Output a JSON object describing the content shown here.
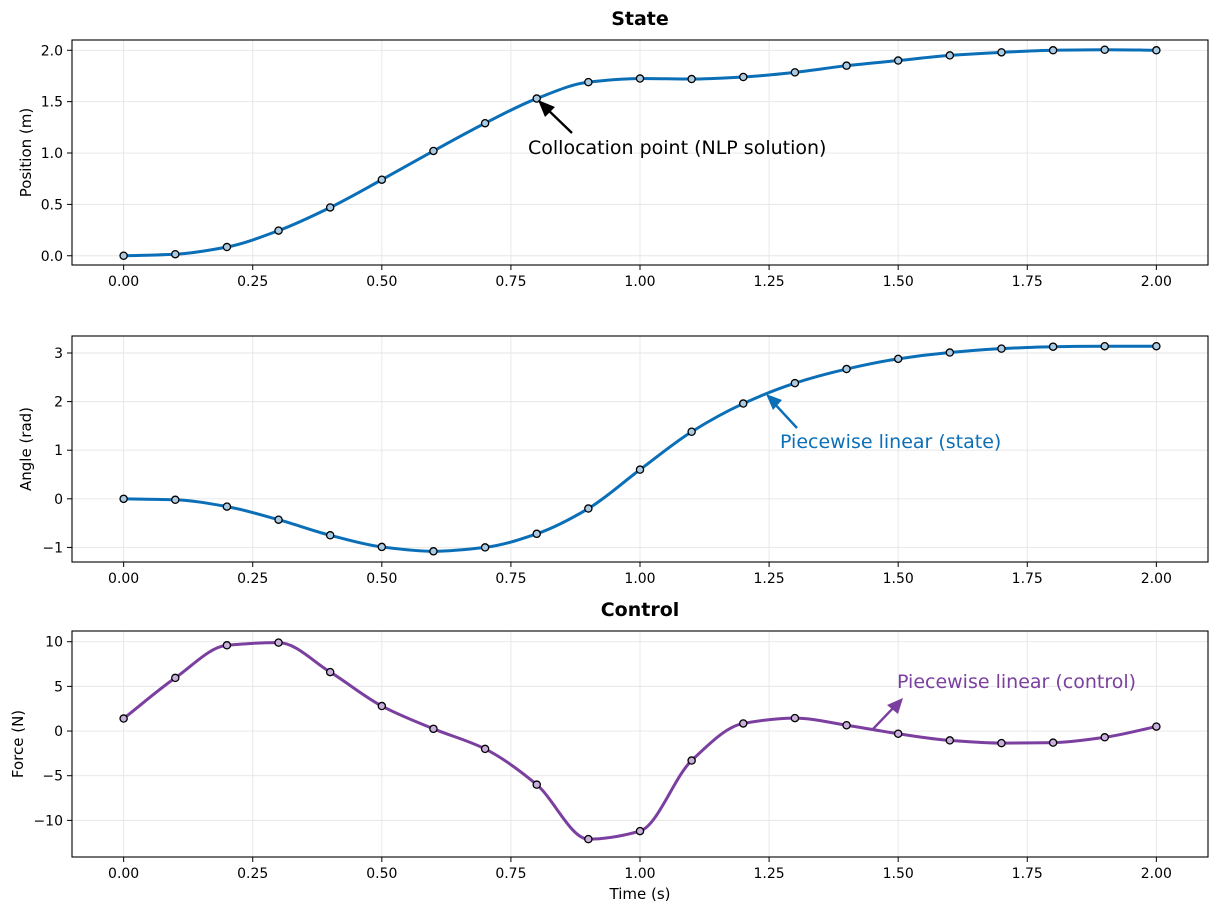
{
  "chart_data": [
    {
      "type": "line",
      "title": "State",
      "xlabel": "",
      "ylabel": "Position (m)",
      "xlim": [
        -0.1,
        2.1
      ],
      "ylim": [
        -0.09,
        2.1
      ],
      "xticks": [
        0,
        0.25,
        0.5,
        0.75,
        1.0,
        1.25,
        1.5,
        1.75,
        2.0
      ],
      "xtick_labels": [
        "0.00",
        "0.25",
        "0.50",
        "0.75",
        "1.00",
        "1.25",
        "1.50",
        "1.75",
        "2.00"
      ],
      "yticks": [
        0,
        0.5,
        1.0,
        1.5,
        2.0
      ],
      "ytick_labels": [
        "0.0",
        "0.5",
        "1.0",
        "1.5",
        "2.0"
      ],
      "grid": true,
      "series": [
        {
          "name": "position",
          "color": "#0b6fb8",
          "marker_fill": "#a9cbe3",
          "x": [
            0.0,
            0.1,
            0.2,
            0.3,
            0.4,
            0.5,
            0.6,
            0.7,
            0.8,
            0.9,
            1.0,
            1.1,
            1.2,
            1.3,
            1.4,
            1.5,
            1.6,
            1.7,
            1.8,
            1.9,
            2.0
          ],
          "y": [
            0.0,
            0.015,
            0.085,
            0.245,
            0.47,
            0.74,
            1.02,
            1.29,
            1.53,
            1.69,
            1.725,
            1.72,
            1.74,
            1.785,
            1.85,
            1.9,
            1.95,
            1.98,
            2.0,
            2.005,
            2.0
          ]
        }
      ],
      "annotations": [
        {
          "text": "Collocation point (NLP solution)",
          "color": "#000000",
          "x": 0.8,
          "y": 1.53
        }
      ]
    },
    {
      "type": "line",
      "title": "",
      "xlabel": "",
      "ylabel": "Angle (rad)",
      "xlim": [
        -0.1,
        2.1
      ],
      "ylim": [
        -1.3,
        3.35
      ],
      "xticks": [
        0,
        0.25,
        0.5,
        0.75,
        1.0,
        1.25,
        1.5,
        1.75,
        2.0
      ],
      "xtick_labels": [
        "0.00",
        "0.25",
        "0.50",
        "0.75",
        "1.00",
        "1.25",
        "1.50",
        "1.75",
        "2.00"
      ],
      "yticks": [
        -1,
        0,
        1,
        2,
        3
      ],
      "ytick_labels": [
        "−1",
        "0",
        "1",
        "2",
        "3"
      ],
      "grid": true,
      "series": [
        {
          "name": "angle",
          "color": "#0b6fb8",
          "marker_fill": "#a9cbe3",
          "x": [
            0.0,
            0.1,
            0.2,
            0.3,
            0.4,
            0.5,
            0.6,
            0.7,
            0.8,
            0.9,
            1.0,
            1.1,
            1.2,
            1.3,
            1.4,
            1.5,
            1.6,
            1.7,
            1.8,
            1.9,
            2.0
          ],
          "y": [
            0.0,
            -0.02,
            -0.16,
            -0.43,
            -0.75,
            -0.99,
            -1.08,
            -1.0,
            -0.72,
            -0.2,
            0.6,
            1.38,
            1.96,
            2.38,
            2.67,
            2.88,
            3.01,
            3.09,
            3.13,
            3.14,
            3.14
          ]
        }
      ],
      "annotations": [
        {
          "text": "Piecewise linear (state)",
          "color": "#0b6fb8",
          "x": 1.25,
          "y": 2.1
        }
      ]
    },
    {
      "type": "line",
      "title": "Control",
      "xlabel": "Time (s)",
      "ylabel": "Force (N)",
      "xlim": [
        -0.1,
        2.1
      ],
      "ylim": [
        -14.1,
        11.2
      ],
      "xticks": [
        0,
        0.25,
        0.5,
        0.75,
        1.0,
        1.25,
        1.5,
        1.75,
        2.0
      ],
      "xtick_labels": [
        "0.00",
        "0.25",
        "0.50",
        "0.75",
        "1.00",
        "1.25",
        "1.50",
        "1.75",
        "2.00"
      ],
      "yticks": [
        -10,
        -5,
        0,
        5,
        10
      ],
      "ytick_labels": [
        "−10",
        "−5",
        "0",
        "5",
        "10"
      ],
      "grid": true,
      "series": [
        {
          "name": "force",
          "color": "#7b3fa0",
          "marker_fill": "#c9b0dc",
          "x": [
            0.0,
            0.1,
            0.2,
            0.3,
            0.4,
            0.5,
            0.6,
            0.7,
            0.8,
            0.9,
            1.0,
            1.1,
            1.2,
            1.3,
            1.4,
            1.5,
            1.6,
            1.7,
            1.8,
            1.9,
            2.0
          ],
          "y": [
            1.4,
            5.95,
            9.6,
            9.9,
            6.6,
            2.8,
            0.25,
            -2.0,
            -6.0,
            -12.1,
            -11.2,
            -3.3,
            0.85,
            1.45,
            0.65,
            -0.3,
            -1.05,
            -1.35,
            -1.3,
            -0.7,
            0.5
          ]
        }
      ],
      "annotations": [
        {
          "text": "Piecewise linear (control)",
          "color": "#7b3fa0",
          "x": 1.45,
          "y": 0.2
        }
      ]
    }
  ]
}
